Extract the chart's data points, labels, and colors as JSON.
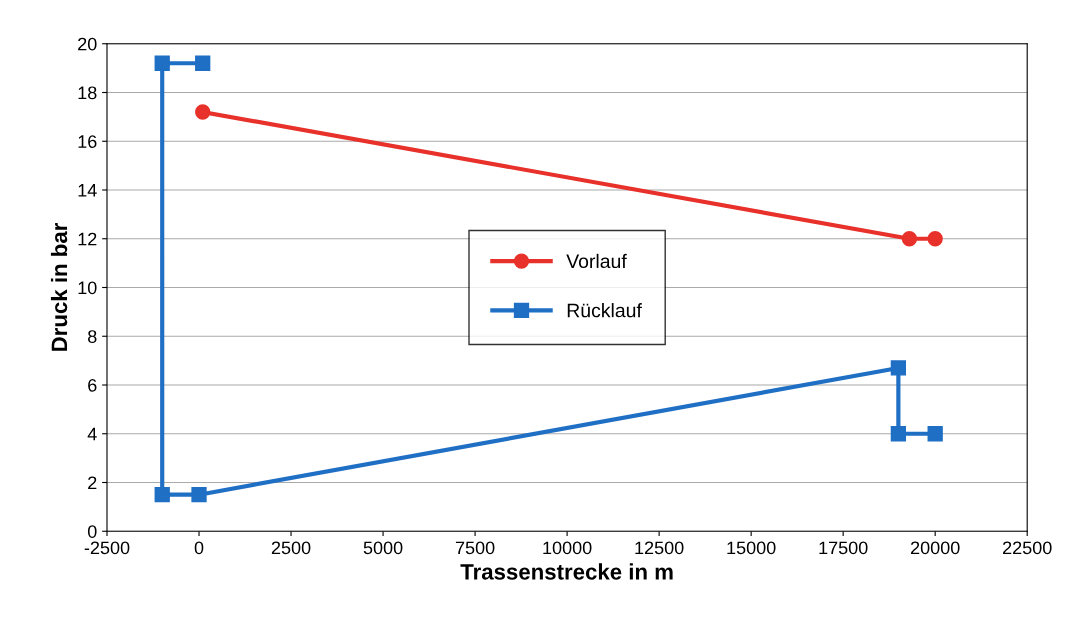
{
  "chart_data": {
    "type": "line",
    "xlabel": "Trassenstrecke in m",
    "ylabel": "Druck in bar",
    "xlim": [
      -2500,
      22500
    ],
    "xticks": [
      -2500,
      0,
      2500,
      5000,
      7500,
      10000,
      12500,
      15000,
      17500,
      20000,
      22500
    ],
    "ylim": [
      0,
      20
    ],
    "yticks": [
      0,
      2,
      4,
      6,
      8,
      10,
      12,
      14,
      16,
      18,
      20
    ],
    "grid": "y",
    "legend": "center",
    "line_style": "solid",
    "series": [
      {
        "name": "Vorlauf",
        "color": "#e8312a",
        "marker": "circle",
        "x": [
          100,
          19300,
          20000
        ],
        "values": [
          17.2,
          12.0,
          12.0
        ]
      },
      {
        "name": "Rücklauf",
        "color": "#1f6fc5",
        "marker": "square",
        "x": [
          100,
          -1000,
          -1000,
          0,
          19000,
          19000,
          20000
        ],
        "values": [
          19.2,
          19.2,
          1.5,
          1.5,
          6.7,
          4.0,
          4.0
        ]
      }
    ]
  }
}
